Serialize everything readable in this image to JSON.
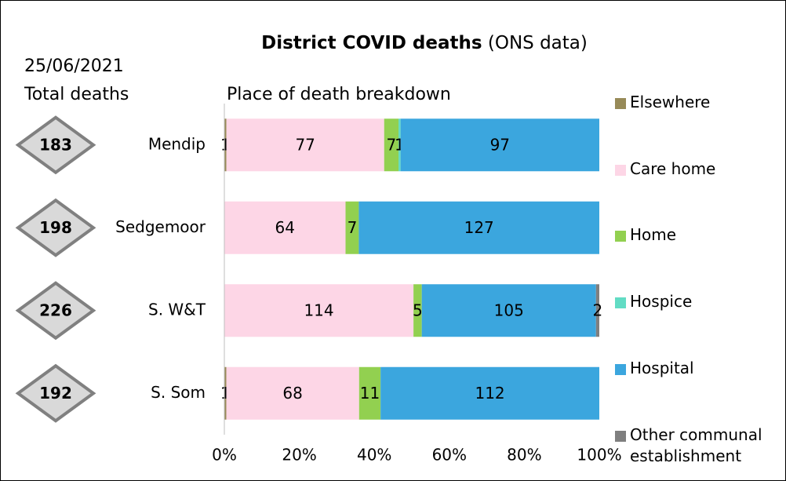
{
  "chart_data": {
    "type": "percent_stacked_hbar",
    "title": "District COVID deaths",
    "subtitle": "(ONS data)",
    "date": "25/06/2021",
    "totals_label": "Total deaths",
    "plot_label": "Place of death breakdown",
    "categories": [
      "Mendip",
      "Sedgemoor",
      "S. W&T",
      "S. Som"
    ],
    "totals": [
      183,
      198,
      226,
      192
    ],
    "series": [
      {
        "name": "Elsewhere",
        "color": "#978a58",
        "values": [
          1,
          0,
          0,
          1
        ]
      },
      {
        "name": "Care home",
        "color": "#fdd6e6",
        "values": [
          77,
          64,
          114,
          68
        ]
      },
      {
        "name": "Home",
        "color": "#92d050",
        "values": [
          7,
          7,
          5,
          11
        ]
      },
      {
        "name": "Hospice",
        "color": "#62dcc4",
        "values": [
          1,
          0,
          0,
          0
        ]
      },
      {
        "name": "Hospital",
        "color": "#3ba6de",
        "values": [
          97,
          127,
          105,
          112
        ]
      },
      {
        "name": "Other communal establishment",
        "color": "#7f7f7f",
        "values": [
          0,
          0,
          2,
          0
        ]
      }
    ],
    "xlim": [
      0,
      100
    ],
    "xticks": [
      {
        "value": 0,
        "label": "0%"
      },
      {
        "value": 20,
        "label": "20%"
      },
      {
        "value": 40,
        "label": "40%"
      },
      {
        "value": 60,
        "label": "60%"
      },
      {
        "value": 80,
        "label": "80%"
      },
      {
        "value": 100,
        "label": "100%"
      }
    ]
  }
}
